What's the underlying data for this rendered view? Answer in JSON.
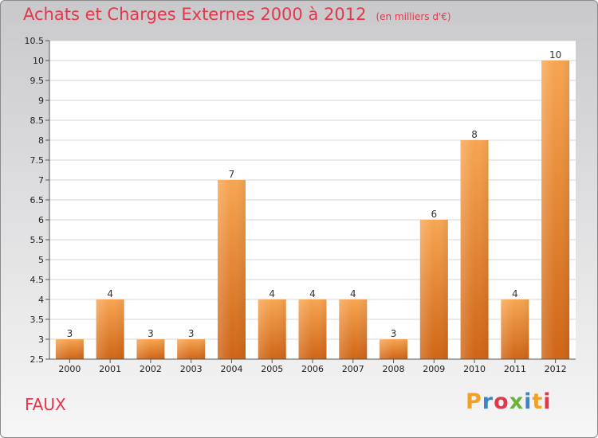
{
  "header": {
    "title": "Achats et Charges Externes 2000 à 2012",
    "subtitle": "(en milliers d'€)"
  },
  "footer": {
    "commune": "FAUX",
    "logo_text": "Proxiti",
    "logo_colors": [
      "#f0a126",
      "#3b86c6",
      "#e2384c",
      "#6bb23c",
      "#3b86c6",
      "#f0a126",
      "#e2384c"
    ]
  },
  "colors": {
    "bar_top": "#f7a552",
    "bar_bottom": "#cf6516",
    "accent": "#e2384c"
  },
  "chart_data": {
    "type": "bar",
    "categories": [
      "2000",
      "2001",
      "2002",
      "2003",
      "2004",
      "2005",
      "2006",
      "2007",
      "2008",
      "2009",
      "2010",
      "2011",
      "2012"
    ],
    "values": [
      3,
      4,
      3,
      3,
      7,
      4,
      4,
      4,
      3,
      6,
      8,
      4,
      10
    ],
    "value_labels": [
      "3",
      "4",
      "3",
      "3",
      "7",
      "4",
      "4",
      "4",
      "3",
      "6",
      "8",
      "4",
      "10"
    ],
    "y_ticks": [
      "2.5",
      "3",
      "3.5",
      "4",
      "4.5",
      "5",
      "5.5",
      "6",
      "6.5",
      "7",
      "7.5",
      "8",
      "8.5",
      "9",
      "9.5",
      "10",
      "10.5"
    ],
    "ylim": [
      2.5,
      10.5
    ],
    "grid": true
  }
}
